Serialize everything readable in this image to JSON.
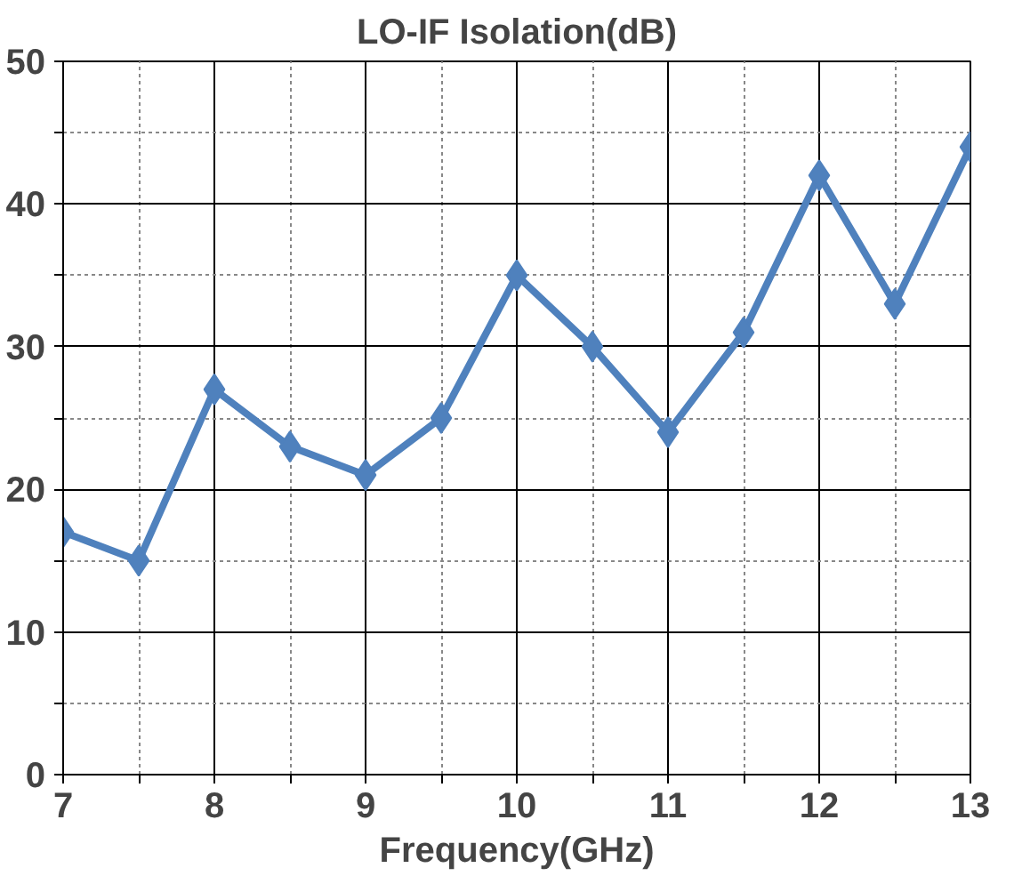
{
  "chart_data": {
    "type": "line",
    "title": "LO-IF Isolation(dB)",
    "xlabel": "Frequency(GHz)",
    "x": [
      7,
      7.5,
      8,
      8.5,
      9,
      9.5,
      10,
      10.5,
      11,
      11.5,
      12,
      12.5,
      13
    ],
    "series": [
      {
        "color": "#4f81bd",
        "values": [
          17,
          15,
          27,
          23,
          21,
          25,
          35,
          30,
          24,
          31,
          42,
          33,
          44
        ]
      }
    ],
    "xlim": [
      7,
      13
    ],
    "ylim": [
      0,
      50
    ],
    "xticks": [
      7,
      {
        "value": 7.5,
        "label": null
      },
      8,
      {
        "value": 8.5,
        "label": null
      },
      9,
      {
        "value": 9.5,
        "label": null
      },
      10,
      {
        "value": 10.5,
        "label": null
      },
      11,
      {
        "value": 11.5,
        "label": null
      },
      12,
      {
        "value": 12.5,
        "label": null
      },
      13
    ],
    "yticks": [
      0,
      {
        "value": 5,
        "label": null
      },
      10,
      {
        "value": 15,
        "label": null
      },
      20,
      {
        "value": 25,
        "label": null
      },
      30,
      {
        "value": 35,
        "label": null
      },
      40,
      {
        "value": 45,
        "label": null
      },
      50
    ],
    "grid": true,
    "marker": "diamond",
    "line_style": "solid"
  }
}
